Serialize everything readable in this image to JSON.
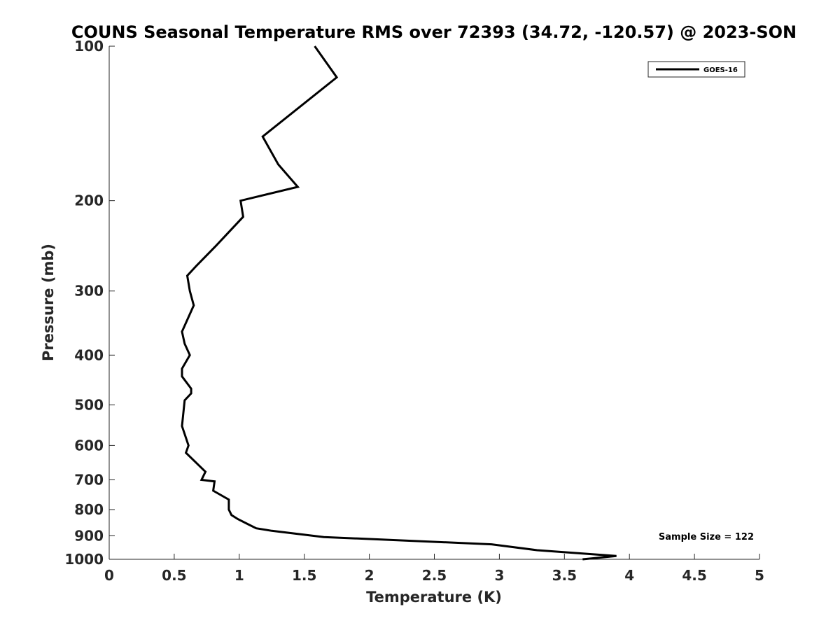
{
  "chart_data": {
    "type": "line",
    "title": "COUNS Seasonal Temperature RMS over 72393 (34.72, -120.57) @ 2023-SON",
    "xlabel": "Temperature (K)",
    "ylabel": "Pressure (mb)",
    "xlim": [
      0,
      5
    ],
    "ylim": [
      1000,
      100
    ],
    "yscale": "log",
    "xticks": [
      "0",
      "0.5",
      "1",
      "1.5",
      "2",
      "2.5",
      "3",
      "3.5",
      "4",
      "4.5",
      "5"
    ],
    "yticks": [
      "100",
      "200",
      "300",
      "400",
      "500",
      "600",
      "700",
      "800",
      "900",
      "1000"
    ],
    "grid": false,
    "legend_position": "top-right",
    "annotation": "Sample Size = 122",
    "series": [
      {
        "name": "GOES-16",
        "color": "#000000",
        "x": [
          1.58,
          1.75,
          1.18,
          1.3,
          1.45,
          1.01,
          1.03,
          0.82,
          0.67,
          0.6,
          0.62,
          0.65,
          0.56,
          0.58,
          0.62,
          0.56,
          0.56,
          0.63,
          0.63,
          0.58,
          0.56,
          0.61,
          0.59,
          0.74,
          0.71,
          0.81,
          0.8,
          0.92,
          0.92,
          0.94,
          0.99,
          1.07,
          1.13,
          1.25,
          1.65,
          2.94,
          3.29,
          3.9,
          3.64
        ],
        "y": [
          100,
          115,
          150,
          170,
          188,
          200,
          215,
          245,
          268,
          280,
          300,
          320,
          360,
          380,
          400,
          425,
          440,
          465,
          475,
          490,
          550,
          600,
          620,
          675,
          700,
          705,
          735,
          765,
          800,
          820,
          835,
          855,
          870,
          880,
          905,
          935,
          960,
          985,
          1000
        ]
      }
    ]
  }
}
